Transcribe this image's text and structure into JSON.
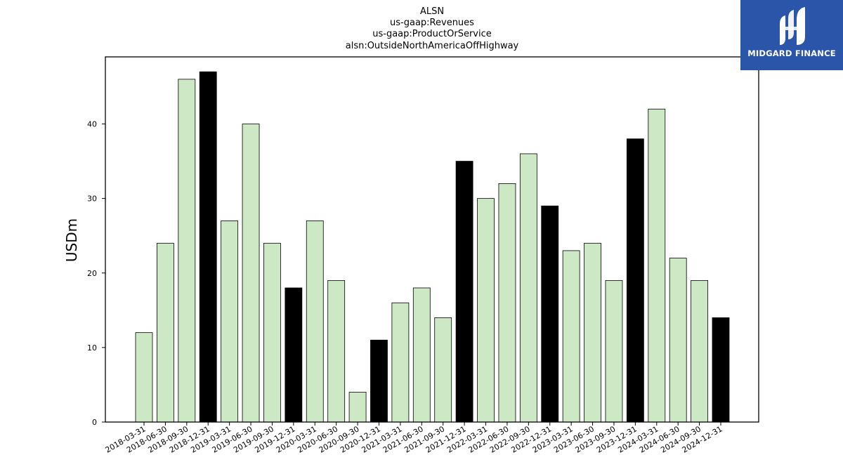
{
  "chart_data": {
    "type": "bar",
    "title": [
      "ALSN",
      "us-gaap:Revenues",
      "us-gaap:ProductOrService",
      "alsn:OutsideNorthAmericaOffHighway"
    ],
    "xlabel": "",
    "ylabel": "USDm",
    "ylim": [
      0,
      49
    ],
    "yticks": [
      0,
      10,
      20,
      30,
      40
    ],
    "grid": false,
    "categories": [
      "2018-03-31",
      "2018-06-30",
      "2018-09-30",
      "2018-12-31",
      "2019-03-31",
      "2019-06-30",
      "2019-09-30",
      "2019-12-31",
      "2020-03-31",
      "2020-06-30",
      "2020-09-30",
      "2020-12-31",
      "2021-03-31",
      "2021-06-30",
      "2021-09-30",
      "2021-12-31",
      "2022-03-31",
      "2022-06-30",
      "2022-09-30",
      "2022-12-31",
      "2023-03-31",
      "2023-06-30",
      "2023-09-30",
      "2023-12-31",
      "2024-03-31",
      "2024-06-30",
      "2024-09-30",
      "2024-12-31"
    ],
    "values": [
      12,
      24,
      46,
      47,
      27,
      40,
      24,
      18,
      27,
      19,
      4,
      11,
      16,
      18,
      14,
      35,
      30,
      32,
      36,
      29,
      23,
      24,
      19,
      38,
      42,
      22,
      19,
      14
    ],
    "highlight": [
      false,
      false,
      false,
      true,
      false,
      false,
      false,
      true,
      false,
      false,
      false,
      true,
      false,
      false,
      false,
      true,
      false,
      false,
      false,
      true,
      false,
      false,
      false,
      true,
      false,
      false,
      false,
      true
    ],
    "colors": {
      "bar": "#cde8c5",
      "highlight": "#000000",
      "edge": "#000000"
    }
  },
  "logo": {
    "text": "MIDGARD FINANCE",
    "background": "#2b55a8"
  }
}
